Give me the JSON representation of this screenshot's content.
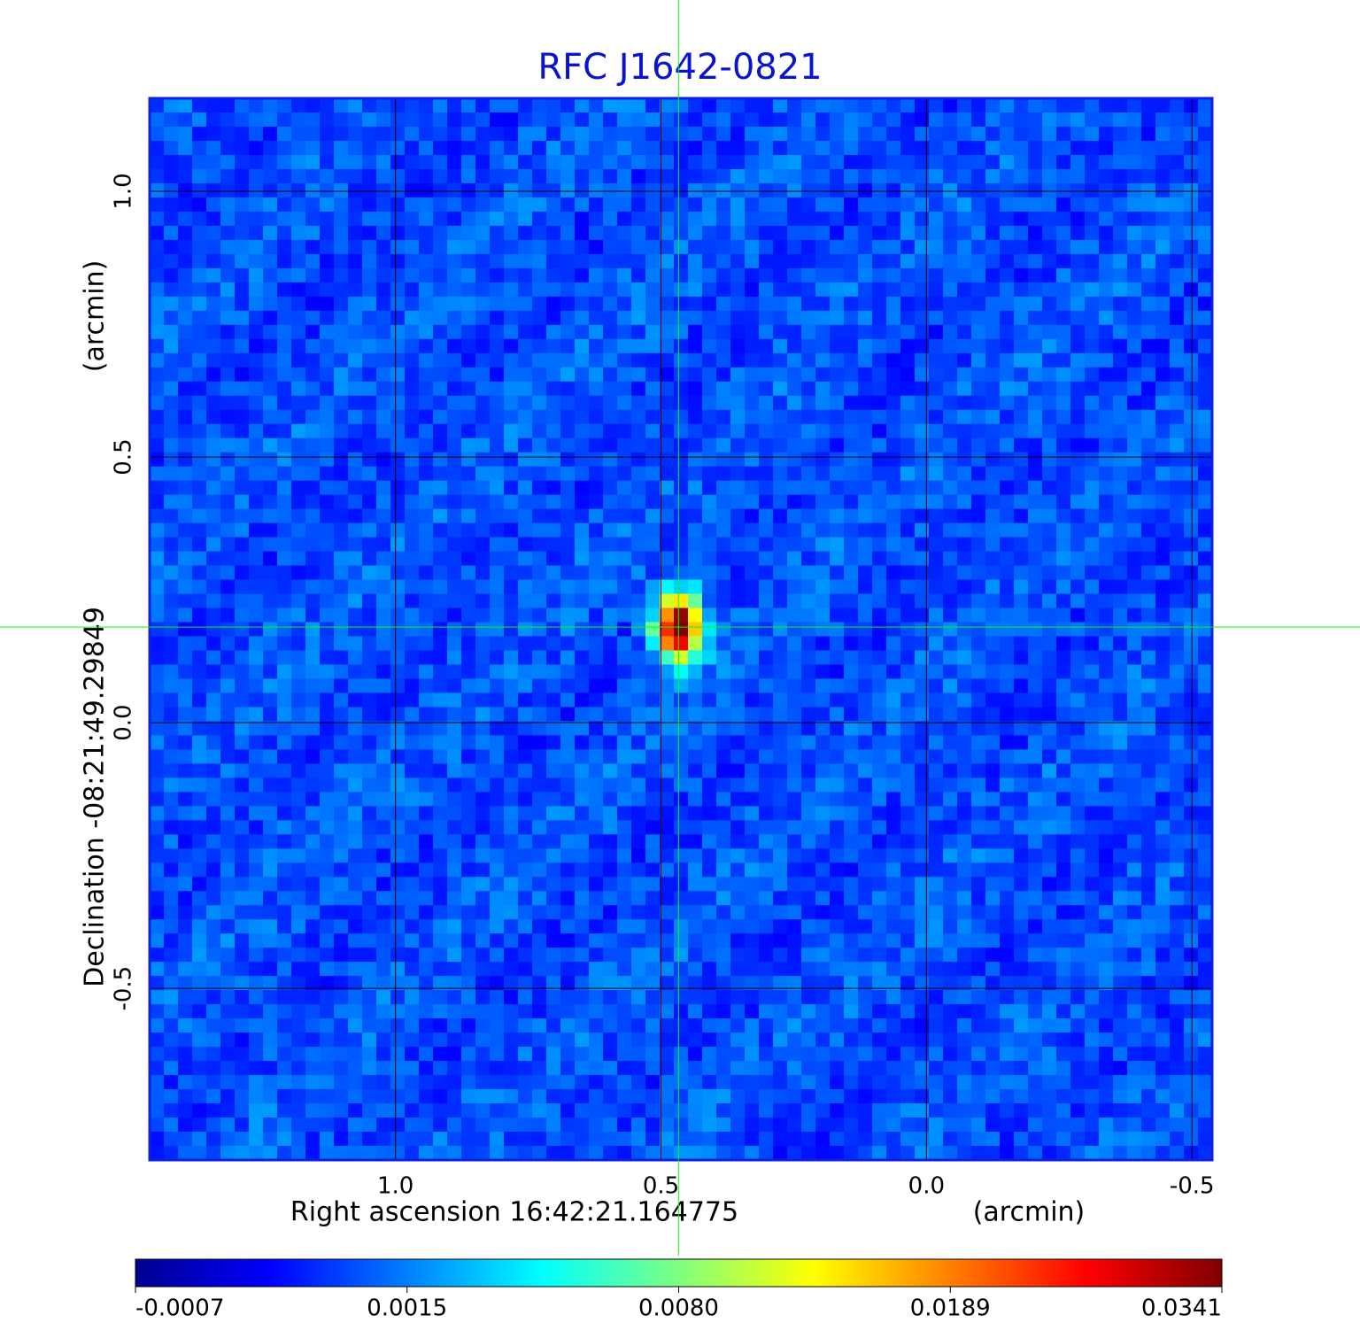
{
  "chart_data": {
    "type": "image",
    "title": "RFC J1642-0821",
    "x_label": "Right ascension  16:42:21.164775",
    "x_unit": "(arcmin)",
    "y_label": "Declination  -08:21:49.29849",
    "y_unit": "(arcmin)",
    "xlim": [
      1.463,
      -0.538
    ],
    "ylim": [
      -0.823,
      1.175
    ],
    "xticks": [
      {
        "value": 1.0,
        "label": "1.0"
      },
      0.5,
      {
        "value": 0.0,
        "label": "0.0"
      },
      -0.5
    ],
    "yticks": [
      {
        "value": -0.5,
        "label": "-0.5"
      },
      {
        "value": 0.0,
        "label": "0.0"
      },
      0.5,
      {
        "value": 1.0,
        "label": "1.0"
      }
    ],
    "grid": true,
    "marker": {
      "x": 0.467,
      "y": 0.18,
      "color": "#00ff00"
    },
    "colorbar": {
      "colormap": "jet",
      "ticks": [
        -0.0007,
        0.0015,
        {
          "value": 0.008,
          "label": "0.0080"
        },
        0.0189,
        0.0341
      ]
    }
  }
}
